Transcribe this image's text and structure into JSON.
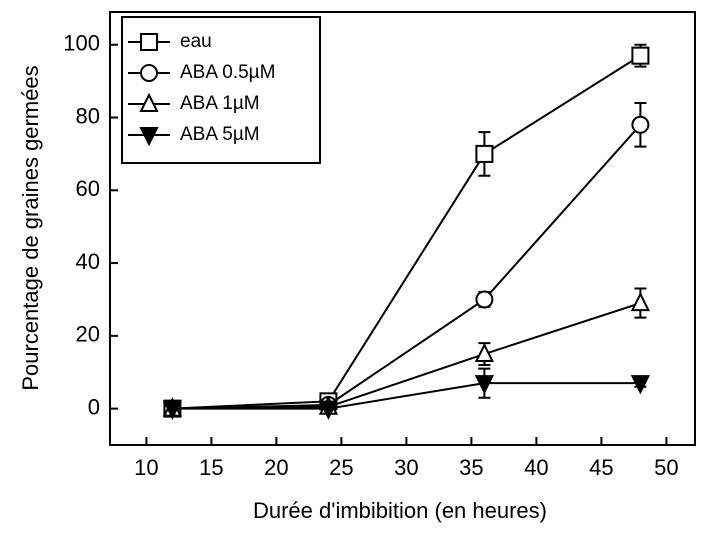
{
  "chart_data": {
    "type": "line",
    "x_label": "Durée d'imbibition (en heures)",
    "y_label": "Pourcentage de graines germées",
    "x": [
      12,
      24,
      36,
      48
    ],
    "series": [
      {
        "name": "eau",
        "color": "#000000",
        "marker": "square",
        "filled": false,
        "values": [
          0,
          2,
          70,
          97
        ],
        "errors": [
          null,
          null,
          6,
          3
        ]
      },
      {
        "name": "ABA 0.5µM",
        "color": "#000000",
        "marker": "circle",
        "filled": false,
        "values": [
          0,
          1,
          30,
          78
        ],
        "errors": [
          null,
          null,
          2,
          6
        ]
      },
      {
        "name": "ABA 1µM",
        "color": "#000000",
        "marker": "triangle-up",
        "filled": false,
        "values": [
          0,
          0.5,
          15,
          29
        ],
        "errors": [
          null,
          null,
          3,
          4
        ]
      },
      {
        "name": "ABA 5µM",
        "color": "#000000",
        "marker": "triangle-down",
        "filled": true,
        "values": [
          0,
          0,
          7,
          7
        ],
        "errors": [
          null,
          null,
          4,
          1
        ]
      }
    ],
    "xlim": [
      7.2,
      52.2
    ],
    "ylim": [
      -10,
      109
    ],
    "xticks": [
      10,
      15,
      20,
      25,
      30,
      35,
      40,
      45,
      50
    ],
    "yticks": [
      0,
      20,
      40,
      60,
      80,
      100
    ],
    "legend": "top-left",
    "grid": false
  }
}
